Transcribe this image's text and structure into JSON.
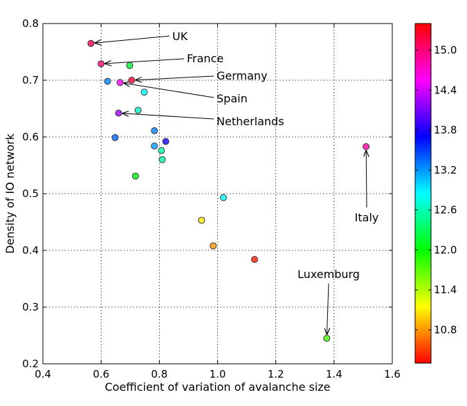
{
  "chart_data": {
    "type": "scatter",
    "title": "",
    "xlabel": "Coefficient of variation of avalanche size",
    "ylabel": "Density of IO network",
    "xlim": [
      0.4,
      1.6
    ],
    "ylim": [
      0.2,
      0.8
    ],
    "xticks": [
      0.4,
      0.6,
      0.8,
      1.0,
      1.2,
      1.4,
      1.6
    ],
    "yticks": [
      0.2,
      0.3,
      0.4,
      0.5,
      0.6,
      0.7,
      0.8
    ],
    "grid": true,
    "colorbar": {
      "min": 10.3,
      "max": 15.4,
      "ticks": [
        10.8,
        11.4,
        12.0,
        12.6,
        13.2,
        13.8,
        14.4,
        15.0
      ],
      "colormap": "hsv"
    },
    "points": [
      {
        "x": 0.565,
        "y": 0.765,
        "c": 15.2,
        "label": "UK"
      },
      {
        "x": 0.6,
        "y": 0.729,
        "c": 15.1,
        "label": "France"
      },
      {
        "x": 0.698,
        "y": 0.726,
        "c": 12.2,
        "label": ""
      },
      {
        "x": 0.622,
        "y": 0.698,
        "c": 13.3,
        "label": ""
      },
      {
        "x": 0.705,
        "y": 0.7,
        "c": 15.3,
        "label": "Germany"
      },
      {
        "x": 0.665,
        "y": 0.696,
        "c": 14.6,
        "label": "Spain"
      },
      {
        "x": 0.748,
        "y": 0.679,
        "c": 12.9,
        "label": ""
      },
      {
        "x": 0.66,
        "y": 0.642,
        "c": 14.3,
        "label": "Netherlands"
      },
      {
        "x": 0.727,
        "y": 0.647,
        "c": 12.7,
        "label": ""
      },
      {
        "x": 0.783,
        "y": 0.611,
        "c": 13.3,
        "label": ""
      },
      {
        "x": 0.648,
        "y": 0.599,
        "c": 13.4,
        "label": ""
      },
      {
        "x": 0.822,
        "y": 0.592,
        "c": 13.8,
        "label": ""
      },
      {
        "x": 0.783,
        "y": 0.584,
        "c": 13.2,
        "label": ""
      },
      {
        "x": 0.807,
        "y": 0.576,
        "c": 12.6,
        "label": ""
      },
      {
        "x": 0.81,
        "y": 0.56,
        "c": 12.6,
        "label": ""
      },
      {
        "x": 0.718,
        "y": 0.531,
        "c": 12.1,
        "label": ""
      },
      {
        "x": 1.02,
        "y": 0.493,
        "c": 12.9,
        "label": ""
      },
      {
        "x": 0.945,
        "y": 0.453,
        "c": 11.1,
        "label": ""
      },
      {
        "x": 0.985,
        "y": 0.408,
        "c": 10.8,
        "label": ""
      },
      {
        "x": 1.127,
        "y": 0.384,
        "c": 10.4,
        "label": ""
      },
      {
        "x": 1.51,
        "y": 0.583,
        "c": 14.9,
        "label": "Italy"
      },
      {
        "x": 1.375,
        "y": 0.245,
        "c": 11.8,
        "label": "Luxemburg"
      }
    ]
  }
}
